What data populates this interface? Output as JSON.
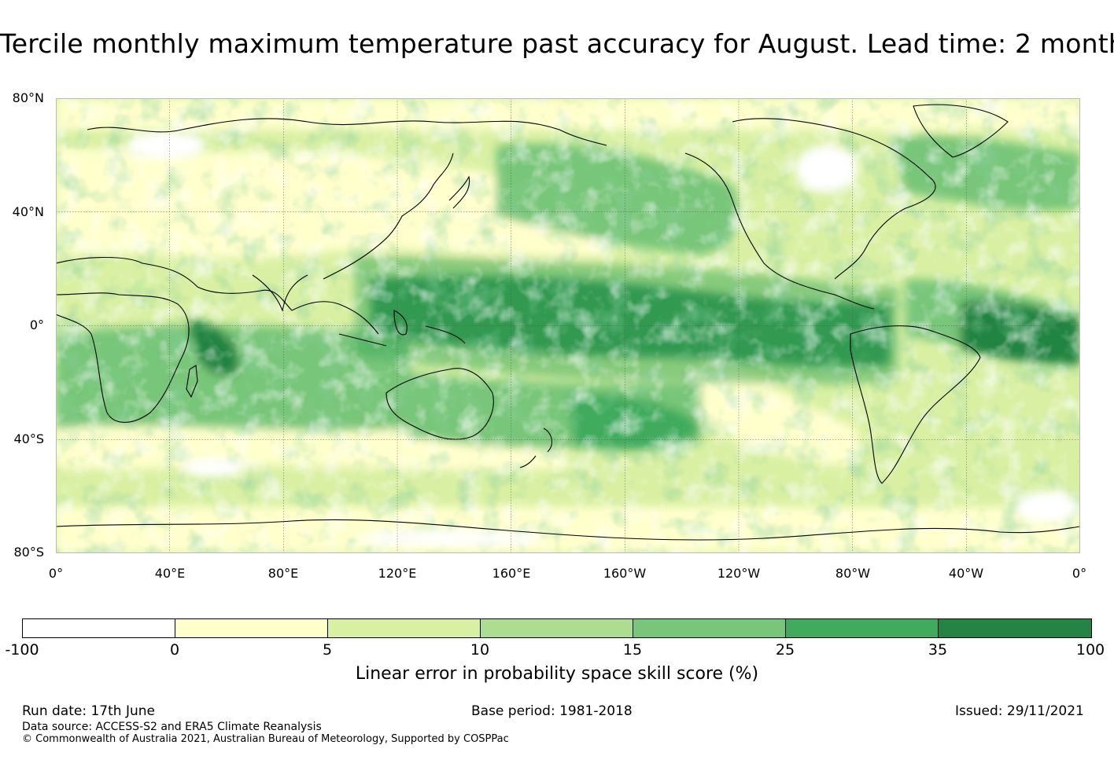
{
  "title": "Tercile monthly maximum temperature past accuracy for August. Lead time: 2 month",
  "map": {
    "lat_labels": [
      "80°N",
      "40°N",
      "0°",
      "40°S",
      "80°S"
    ],
    "lon_labels": [
      "0°",
      "40°E",
      "80°E",
      "120°E",
      "160°E",
      "160°W",
      "120°W",
      "80°W",
      "40°W",
      "0°"
    ]
  },
  "legend": {
    "ticks": [
      "-100",
      "0",
      "5",
      "10",
      "15",
      "25",
      "35",
      "100"
    ],
    "colors": [
      "#ffffff",
      "#ffffcc",
      "#d9f0a3",
      "#addd8e",
      "#78c679",
      "#41ab5d",
      "#238443"
    ],
    "label": "Linear error in probability space skill score (%)"
  },
  "footer": {
    "run_date": "Run date: 17th June",
    "base_period": "Base period: 1981-2018",
    "issued": "Issued: 29/11/2021",
    "data_source": "Data source: ACCESS-S2 and ERA5 Climate Reanalysis",
    "copyright": "© Commonwealth of Australia 2021, Australian Bureau of Meteorology, Supported by COSPPac"
  }
}
